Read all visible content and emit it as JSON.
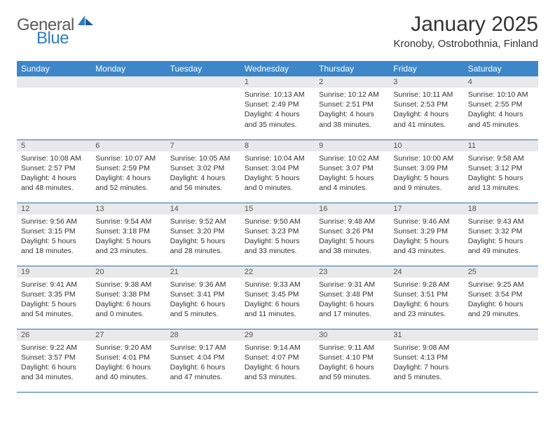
{
  "logo": {
    "part1": "General",
    "part2": "Blue"
  },
  "title": "January 2025",
  "location": "Kronoby, Ostrobothnia, Finland",
  "colors": {
    "header_bg": "#3d87c9",
    "header_text": "#ffffff",
    "daynum_bg": "#e8e9ea",
    "row_border": "#2f6faa",
    "text": "#333333",
    "logo_gray": "#5a5a5a",
    "logo_blue": "#2f7dbf"
  },
  "weekdays": [
    "Sunday",
    "Monday",
    "Tuesday",
    "Wednesday",
    "Thursday",
    "Friday",
    "Saturday"
  ],
  "weeks": [
    [
      null,
      null,
      null,
      {
        "n": "1",
        "sr": "10:13 AM",
        "ss": "2:49 PM",
        "dl": "4 hours and 35 minutes."
      },
      {
        "n": "2",
        "sr": "10:12 AM",
        "ss": "2:51 PM",
        "dl": "4 hours and 38 minutes."
      },
      {
        "n": "3",
        "sr": "10:11 AM",
        "ss": "2:53 PM",
        "dl": "4 hours and 41 minutes."
      },
      {
        "n": "4",
        "sr": "10:10 AM",
        "ss": "2:55 PM",
        "dl": "4 hours and 45 minutes."
      }
    ],
    [
      {
        "n": "5",
        "sr": "10:08 AM",
        "ss": "2:57 PM",
        "dl": "4 hours and 48 minutes."
      },
      {
        "n": "6",
        "sr": "10:07 AM",
        "ss": "2:59 PM",
        "dl": "4 hours and 52 minutes."
      },
      {
        "n": "7",
        "sr": "10:05 AM",
        "ss": "3:02 PM",
        "dl": "4 hours and 56 minutes."
      },
      {
        "n": "8",
        "sr": "10:04 AM",
        "ss": "3:04 PM",
        "dl": "5 hours and 0 minutes."
      },
      {
        "n": "9",
        "sr": "10:02 AM",
        "ss": "3:07 PM",
        "dl": "5 hours and 4 minutes."
      },
      {
        "n": "10",
        "sr": "10:00 AM",
        "ss": "3:09 PM",
        "dl": "5 hours and 9 minutes."
      },
      {
        "n": "11",
        "sr": "9:58 AM",
        "ss": "3:12 PM",
        "dl": "5 hours and 13 minutes."
      }
    ],
    [
      {
        "n": "12",
        "sr": "9:56 AM",
        "ss": "3:15 PM",
        "dl": "5 hours and 18 minutes."
      },
      {
        "n": "13",
        "sr": "9:54 AM",
        "ss": "3:18 PM",
        "dl": "5 hours and 23 minutes."
      },
      {
        "n": "14",
        "sr": "9:52 AM",
        "ss": "3:20 PM",
        "dl": "5 hours and 28 minutes."
      },
      {
        "n": "15",
        "sr": "9:50 AM",
        "ss": "3:23 PM",
        "dl": "5 hours and 33 minutes."
      },
      {
        "n": "16",
        "sr": "9:48 AM",
        "ss": "3:26 PM",
        "dl": "5 hours and 38 minutes."
      },
      {
        "n": "17",
        "sr": "9:46 AM",
        "ss": "3:29 PM",
        "dl": "5 hours and 43 minutes."
      },
      {
        "n": "18",
        "sr": "9:43 AM",
        "ss": "3:32 PM",
        "dl": "5 hours and 49 minutes."
      }
    ],
    [
      {
        "n": "19",
        "sr": "9:41 AM",
        "ss": "3:35 PM",
        "dl": "5 hours and 54 minutes."
      },
      {
        "n": "20",
        "sr": "9:38 AM",
        "ss": "3:38 PM",
        "dl": "6 hours and 0 minutes."
      },
      {
        "n": "21",
        "sr": "9:36 AM",
        "ss": "3:41 PM",
        "dl": "6 hours and 5 minutes."
      },
      {
        "n": "22",
        "sr": "9:33 AM",
        "ss": "3:45 PM",
        "dl": "6 hours and 11 minutes."
      },
      {
        "n": "23",
        "sr": "9:31 AM",
        "ss": "3:48 PM",
        "dl": "6 hours and 17 minutes."
      },
      {
        "n": "24",
        "sr": "9:28 AM",
        "ss": "3:51 PM",
        "dl": "6 hours and 23 minutes."
      },
      {
        "n": "25",
        "sr": "9:25 AM",
        "ss": "3:54 PM",
        "dl": "6 hours and 29 minutes."
      }
    ],
    [
      {
        "n": "26",
        "sr": "9:22 AM",
        "ss": "3:57 PM",
        "dl": "6 hours and 34 minutes."
      },
      {
        "n": "27",
        "sr": "9:20 AM",
        "ss": "4:01 PM",
        "dl": "6 hours and 40 minutes."
      },
      {
        "n": "28",
        "sr": "9:17 AM",
        "ss": "4:04 PM",
        "dl": "6 hours and 47 minutes."
      },
      {
        "n": "29",
        "sr": "9:14 AM",
        "ss": "4:07 PM",
        "dl": "6 hours and 53 minutes."
      },
      {
        "n": "30",
        "sr": "9:11 AM",
        "ss": "4:10 PM",
        "dl": "6 hours and 59 minutes."
      },
      {
        "n": "31",
        "sr": "9:08 AM",
        "ss": "4:13 PM",
        "dl": "7 hours and 5 minutes."
      },
      null
    ]
  ],
  "labels": {
    "sunrise": "Sunrise:",
    "sunset": "Sunset:",
    "daylight": "Daylight:"
  }
}
